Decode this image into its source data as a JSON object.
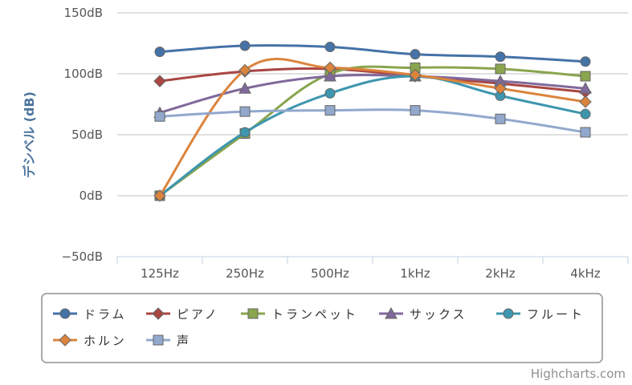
{
  "chart_data": {
    "type": "line",
    "title": "",
    "xlabel": "",
    "ylabel": "デシベル (dB)",
    "categories": [
      "125Hz",
      "250Hz",
      "500Hz",
      "1kHz",
      "2kHz",
      "4kHz"
    ],
    "ylim": [
      -50,
      150
    ],
    "yticks": [
      -50,
      0,
      50,
      100,
      150
    ],
    "ytick_suffix": "dB",
    "ytick_labels": [
      "−50dB",
      "0dB",
      "50dB",
      "100dB",
      "150dB"
    ],
    "grid": true,
    "legend_position": "bottom",
    "series": [
      {
        "name": "ドラム",
        "values": [
          118,
          123,
          122,
          116,
          114,
          110
        ],
        "color": "#4572A7",
        "marker": "circle"
      },
      {
        "name": "ピアノ",
        "values": [
          94,
          102,
          104,
          98,
          92,
          85
        ],
        "color": "#AA4643",
        "marker": "diamond"
      },
      {
        "name": "トランペット",
        "values": [
          0,
          51,
          100,
          105,
          104,
          98
        ],
        "color": "#89A54E",
        "marker": "square"
      },
      {
        "name": "サックス",
        "values": [
          68,
          88,
          98,
          98,
          94,
          88
        ],
        "color": "#80699B",
        "marker": "triangle"
      },
      {
        "name": "フルート",
        "values": [
          0,
          52,
          84,
          98,
          82,
          67
        ],
        "color": "#3D96AE",
        "marker": "circle"
      },
      {
        "name": "ホルン",
        "values": [
          0,
          103,
          105,
          99,
          88,
          77
        ],
        "color": "#DB843D",
        "marker": "diamond"
      },
      {
        "name": "声",
        "values": [
          65,
          69,
          70,
          70,
          63,
          52
        ],
        "color": "#92A8CD",
        "marker": "square"
      }
    ]
  },
  "credit": "Highcharts.com"
}
